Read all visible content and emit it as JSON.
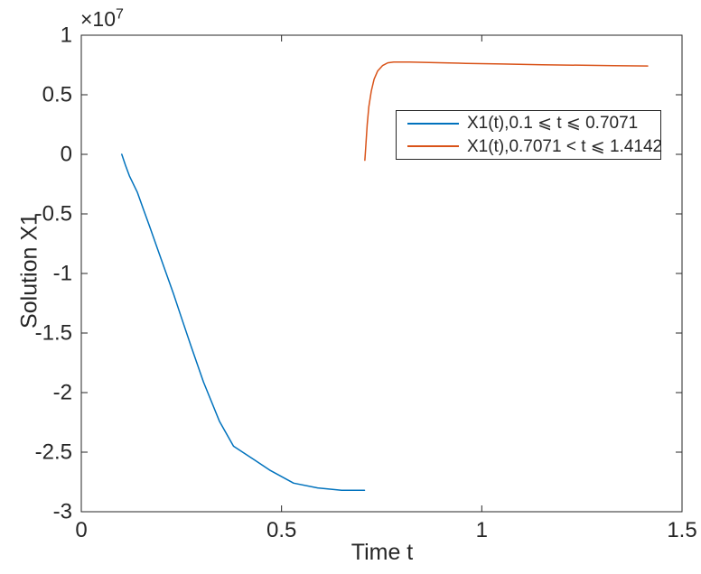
{
  "figure": {
    "background": "#ffffff",
    "axis_color": "#262626"
  },
  "chart_data": {
    "type": "line",
    "title": "",
    "xlabel": "Time t",
    "ylabel": "Solution X1",
    "y_axis_exponent_prefix": "×10",
    "y_axis_exponent": "7",
    "y_unit_scale": 10000000,
    "xlim": [
      0,
      1.5
    ],
    "ylim": [
      -3,
      1
    ],
    "xtick_values": [
      0,
      0.5,
      1,
      1.5
    ],
    "xtick_labels": [
      "0",
      "0.5",
      "1",
      "1.5"
    ],
    "ytick_values": [
      -3,
      -2.5,
      -2,
      -1.5,
      -1,
      -0.5,
      0,
      0.5,
      1
    ],
    "ytick_labels": [
      "-3",
      "-2.5",
      "-2",
      "-1.5",
      "-1",
      "-0.5",
      "0",
      "0.5",
      "1"
    ],
    "grid": false,
    "legend_position": "upper-right-inside",
    "series": [
      {
        "name": "X1(t),0.1 ⩽ t ⩽ 0.7071",
        "color": "#0072BD",
        "points": [
          [
            0.101,
            0.0
          ],
          [
            0.11,
            -0.09
          ],
          [
            0.12,
            -0.18
          ],
          [
            0.14,
            -0.32
          ],
          [
            0.155,
            -0.46
          ],
          [
            0.17,
            -0.6
          ],
          [
            0.19,
            -0.79
          ],
          [
            0.21,
            -0.98
          ],
          [
            0.23,
            -1.17
          ],
          [
            0.25,
            -1.37
          ],
          [
            0.275,
            -1.62
          ],
          [
            0.305,
            -1.91
          ],
          [
            0.345,
            -2.24
          ],
          [
            0.38,
            -2.45
          ],
          [
            0.43,
            -2.56
          ],
          [
            0.47,
            -2.65
          ],
          [
            0.53,
            -2.76
          ],
          [
            0.59,
            -2.8
          ],
          [
            0.65,
            -2.82
          ],
          [
            0.7071,
            -2.82
          ]
        ]
      },
      {
        "name": "X1(t),0.7071 < t ⩽ 1.4142",
        "color": "#D95319",
        "points": [
          [
            0.708,
            -0.05
          ],
          [
            0.711,
            0.1
          ],
          [
            0.714,
            0.25
          ],
          [
            0.718,
            0.4
          ],
          [
            0.724,
            0.53
          ],
          [
            0.731,
            0.63
          ],
          [
            0.74,
            0.7
          ],
          [
            0.752,
            0.745
          ],
          [
            0.765,
            0.768
          ],
          [
            0.78,
            0.775
          ],
          [
            0.82,
            0.775
          ],
          [
            0.88,
            0.77
          ],
          [
            0.96,
            0.764
          ],
          [
            1.05,
            0.758
          ],
          [
            1.15,
            0.752
          ],
          [
            1.25,
            0.748
          ],
          [
            1.33,
            0.745
          ],
          [
            1.4142,
            0.742
          ]
        ]
      }
    ]
  }
}
